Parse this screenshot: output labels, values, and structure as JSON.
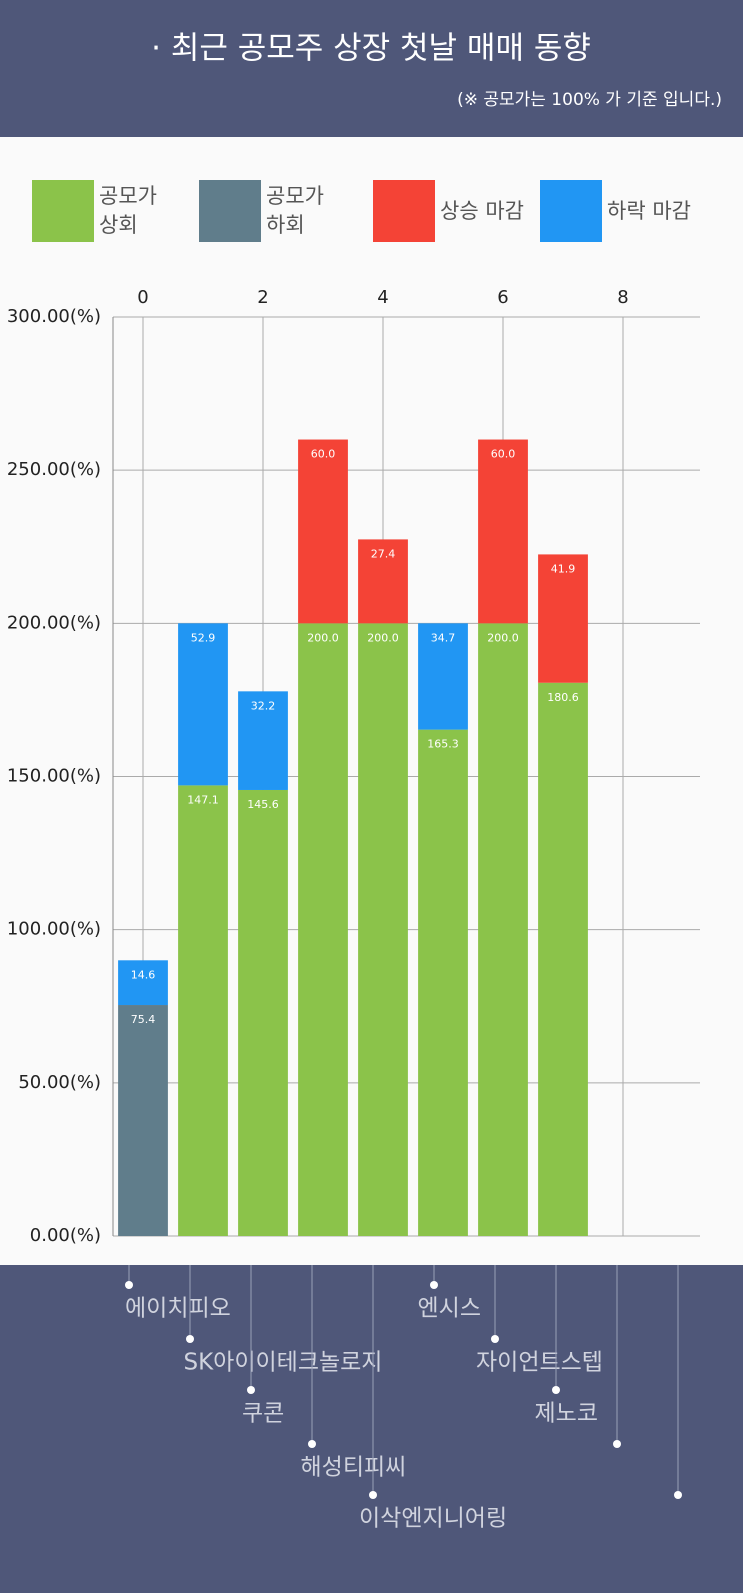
{
  "header": {
    "title": "· 최근 공모주 상장 첫날 매매 동향",
    "subtitle": "(※ 공모가는 100% 가 기준 입니다.)"
  },
  "chart_data": {
    "type": "stacked-bar",
    "x": [
      0,
      1,
      2,
      3,
      4,
      5,
      6,
      7,
      8,
      9
    ],
    "categories": [
      "에이치피오",
      "SK아이이테크놀로지",
      "쿠콘",
      "해성티피씨",
      "이삭엔지니어링",
      "엔시스",
      "자이언트스텝",
      "제노코",
      null,
      null
    ],
    "series": [
      {
        "name": "공모가 상회",
        "color": "#8bc34a",
        "values": [
          null,
          147.1,
          145.6,
          200,
          200,
          165.3,
          200,
          180.6,
          null,
          null
        ],
        "value_labels": [
          null,
          "147.1",
          "145.6",
          "200.0",
          "200.0",
          "165.3",
          "200.0",
          "180.6",
          null,
          null
        ]
      },
      {
        "name": "공모가 하회",
        "color": "#607d8b",
        "values": [
          75.4,
          null,
          null,
          null,
          null,
          null,
          null,
          null,
          null,
          null
        ],
        "value_labels": [
          "75.4",
          null,
          null,
          null,
          null,
          null,
          null,
          null,
          null,
          null
        ]
      },
      {
        "name": "상승 마감",
        "color": "#f44336",
        "values": [
          null,
          null,
          null,
          60,
          27.4,
          null,
          60,
          41.9,
          null,
          null
        ],
        "value_labels": [
          null,
          null,
          null,
          "60.0",
          "27.4",
          null,
          "60.0",
          "41.9",
          null,
          null
        ]
      },
      {
        "name": "하락 마감",
        "color": "#2196f3",
        "values": [
          14.6,
          52.9,
          32.2,
          null,
          null,
          34.7,
          null,
          null,
          null,
          null
        ],
        "value_labels": [
          "14.6",
          "52.9",
          "32.2",
          null,
          null,
          "34.7",
          null,
          null,
          null,
          null
        ]
      }
    ],
    "xlim": [
      -0.5,
      9.5
    ],
    "xticks": [
      0,
      2,
      4,
      6,
      8
    ],
    "ylim": [
      0,
      300
    ],
    "yticks": [
      {
        "value": 0,
        "label": "0.00(%)"
      },
      {
        "value": 50,
        "label": "50.00(%)"
      },
      {
        "value": 100,
        "label": "100.00(%)"
      },
      {
        "value": 150,
        "label": "150.00(%)"
      },
      {
        "value": 200,
        "label": "200.00(%)"
      },
      {
        "value": 250,
        "label": "250.00(%)"
      },
      {
        "value": 300,
        "label": "300.00(%)"
      }
    ],
    "grid": true
  }
}
